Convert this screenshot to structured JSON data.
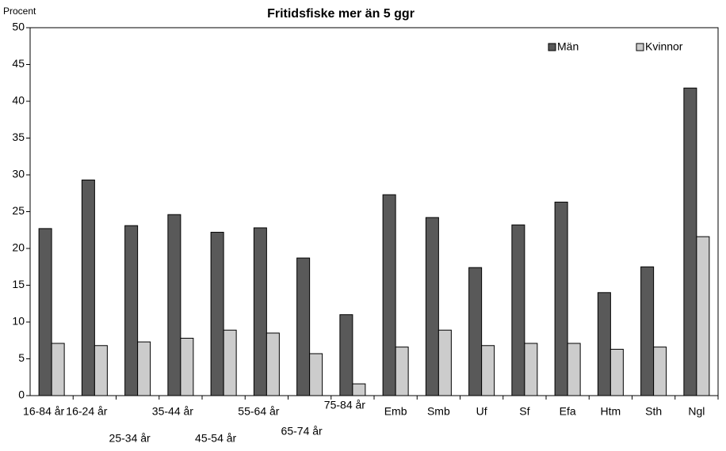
{
  "chart_data": {
    "type": "bar",
    "title": "Fritidsfiske mer än 5 ggr",
    "y_label": "Procent",
    "categories": [
      "16-84 år",
      "16-24 år",
      "25-34 år",
      "35-44 år",
      "45-54 år",
      "55-64 år",
      "65-74 år",
      "75-84 år",
      "Emb",
      "Smb",
      "Uf",
      "Sf",
      "Efa",
      "Htm",
      "Sth",
      "Ngl"
    ],
    "series": [
      {
        "name": "Män",
        "color": "#595959",
        "values": [
          22.7,
          29.3,
          23.1,
          24.6,
          22.2,
          22.8,
          18.7,
          11.0,
          27.3,
          24.2,
          17.4,
          23.2,
          26.3,
          14.0,
          17.5,
          41.8
        ]
      },
      {
        "name": "Kvinnor",
        "color": "#cccccc",
        "values": [
          7.1,
          6.8,
          7.3,
          7.8,
          8.9,
          8.5,
          5.7,
          1.6,
          6.6,
          8.9,
          6.8,
          7.1,
          7.1,
          6.3,
          6.6,
          21.6
        ]
      }
    ],
    "ylim": [
      0,
      50
    ],
    "yticks": [
      0,
      5,
      10,
      15,
      20,
      25,
      30,
      35,
      40,
      45,
      50
    ],
    "legend": "top-right"
  }
}
